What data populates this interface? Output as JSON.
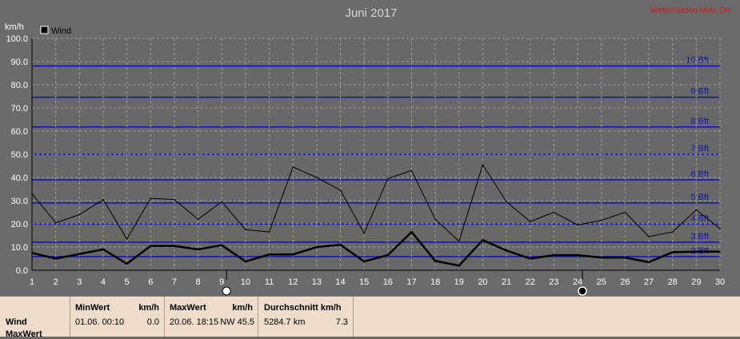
{
  "chart_data": {
    "type": "line",
    "title": "Juni 2017",
    "watermark": "Wetterstation Mein Ort",
    "ylabel": "km/h",
    "ylim": [
      0,
      100
    ],
    "yticks": [
      "0.0",
      "10.0",
      "20.0",
      "30.0",
      "40.0",
      "50.0",
      "60.0",
      "70.0",
      "80.0",
      "90.0",
      "100.0"
    ],
    "x": [
      1,
      2,
      3,
      4,
      5,
      6,
      7,
      8,
      9,
      10,
      11,
      12,
      13,
      14,
      15,
      16,
      17,
      18,
      19,
      20,
      21,
      22,
      23,
      24,
      25,
      26,
      27,
      28,
      29,
      30
    ],
    "legend": {
      "label": "Wind",
      "position": "top-left"
    },
    "series": [
      {
        "name": "Wind",
        "kind": "daily-mean",
        "values": [
          7.5,
          5.0,
          7.0,
          9.0,
          2.8,
          10.5,
          10.5,
          9.0,
          10.8,
          3.8,
          6.8,
          6.8,
          10.0,
          11.0,
          3.8,
          6.5,
          16.5,
          4.0,
          2.0,
          13.0,
          8.5,
          5.0,
          6.5,
          6.5,
          5.5,
          5.5,
          3.5,
          7.8,
          8.0,
          8.0
        ]
      },
      {
        "name": "",
        "kind": "daily-max",
        "values": [
          33.0,
          20.5,
          24.0,
          30.5,
          13.5,
          31.0,
          30.5,
          22.0,
          29.5,
          17.5,
          16.5,
          44.5,
          40.0,
          34.5,
          16.0,
          39.5,
          43.0,
          22.0,
          12.5,
          45.5,
          29.5,
          21.0,
          25.0,
          19.5,
          21.5,
          25.0,
          14.5,
          16.5,
          26.0,
          18.0
        ]
      }
    ],
    "beaufort": [
      {
        "label": "2 Bft",
        "value": 5.9
      },
      {
        "label": "3 Bft",
        "value": 12.1
      },
      {
        "label": "4 Bft",
        "value": 19.9
      },
      {
        "label": "5 Bft",
        "value": 29.0
      },
      {
        "label": "6 Bft",
        "value": 39.0
      },
      {
        "label": "7 Bft",
        "value": 50.0
      },
      {
        "label": "8 Bft",
        "value": 61.8
      },
      {
        "label": "9 Bft",
        "value": 74.6
      },
      {
        "label": "10 Bft",
        "value": 88.1
      }
    ],
    "moon_markers": [
      {
        "day": 9.2,
        "phase": "full"
      },
      {
        "day": 24.2,
        "phase": "new"
      }
    ],
    "colors": {
      "plot_bg": "#686868",
      "beaufort_line": "#1414a8",
      "grid": "#9e9e9e",
      "axis_text": "#ffffff",
      "title": "#d6d6d6",
      "watermark": "#e01010"
    }
  },
  "table": {
    "rows": [
      "Wind",
      "MaxWert"
    ],
    "min": {
      "header": "MinWert",
      "unit": "km/h",
      "datetime": "01.06.  00:10",
      "value": "0.0"
    },
    "max": {
      "header": "MaxWert",
      "unit": "km/h",
      "datetime": "20.06.  18:15",
      "dir_value": "NW 45.5"
    },
    "avg": {
      "header": "Durchschnitt km/h",
      "distance": "5284.7 km",
      "value": "7.3"
    }
  }
}
